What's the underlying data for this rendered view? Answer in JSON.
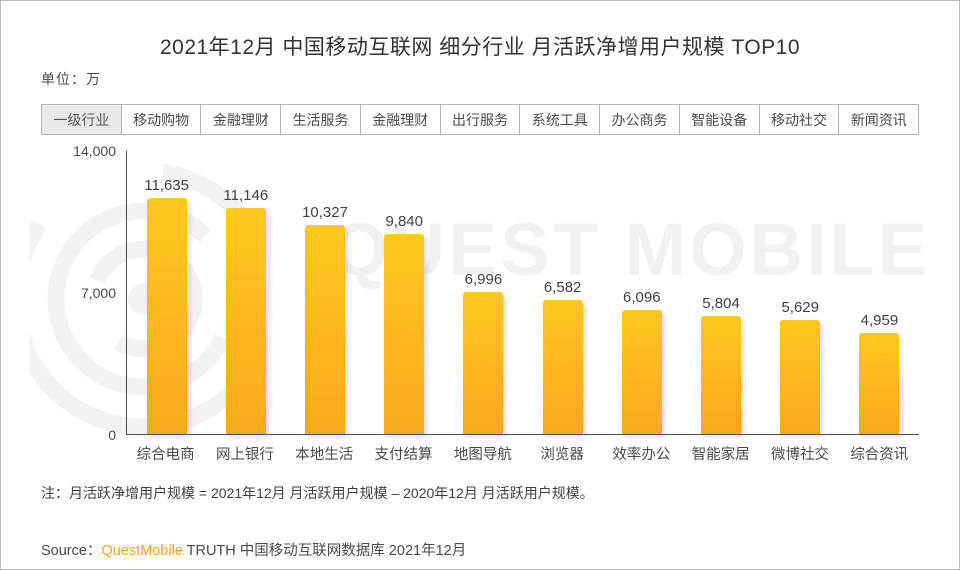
{
  "page": {
    "title": "2021年12月 中国移动互联网 细分行业 月活跃净增用户规模 TOP10",
    "unit_label": "单位：万"
  },
  "industry_row": {
    "header": "一级行业",
    "industries": [
      "移动购物",
      "金融理财",
      "生活服务",
      "金融理财",
      "出行服务",
      "系统工具",
      "办公商务",
      "智能设备",
      "移动社交",
      "新闻资讯"
    ]
  },
  "chart_data": {
    "type": "bar",
    "title": "2021年12月 中国移动互联网 细分行业 月活跃净增用户规模 TOP10",
    "ylabel": "单位：万",
    "categories": [
      "综合电商",
      "网上银行",
      "本地生活",
      "支付结算",
      "地图导航",
      "浏览器",
      "效率办公",
      "智能家居",
      "微博社交",
      "综合资讯"
    ],
    "values": [
      11635,
      11146,
      10327,
      9840,
      6996,
      6582,
      6096,
      5804,
      5629,
      4959
    ],
    "value_labels": [
      "11,635",
      "11,146",
      "10,327",
      "9,840",
      "6,996",
      "6,582",
      "6,096",
      "5,804",
      "5,629",
      "4,959"
    ],
    "ylim": [
      0,
      14000
    ],
    "yticks": [
      14000,
      7000,
      0
    ],
    "ytick_labels": [
      "14,000",
      "7,000",
      "0"
    ],
    "grid": false,
    "legend": false,
    "bar_color_top": "#FEC81E",
    "bar_color_bottom": "#F9A91E"
  },
  "watermark": {
    "logo_text": "QUEST MOBILE"
  },
  "note": "注：月活跃净增用户规模 = 2021年12月 月活跃用户规模 – 2020年12月 月活跃用户规模。",
  "source": {
    "prefix": "Source：",
    "brand": "QuestMobile",
    "suffix": " TRUTH 中国移动互联网数据库 2021年12月",
    "brand_color": "#F7A21E"
  }
}
